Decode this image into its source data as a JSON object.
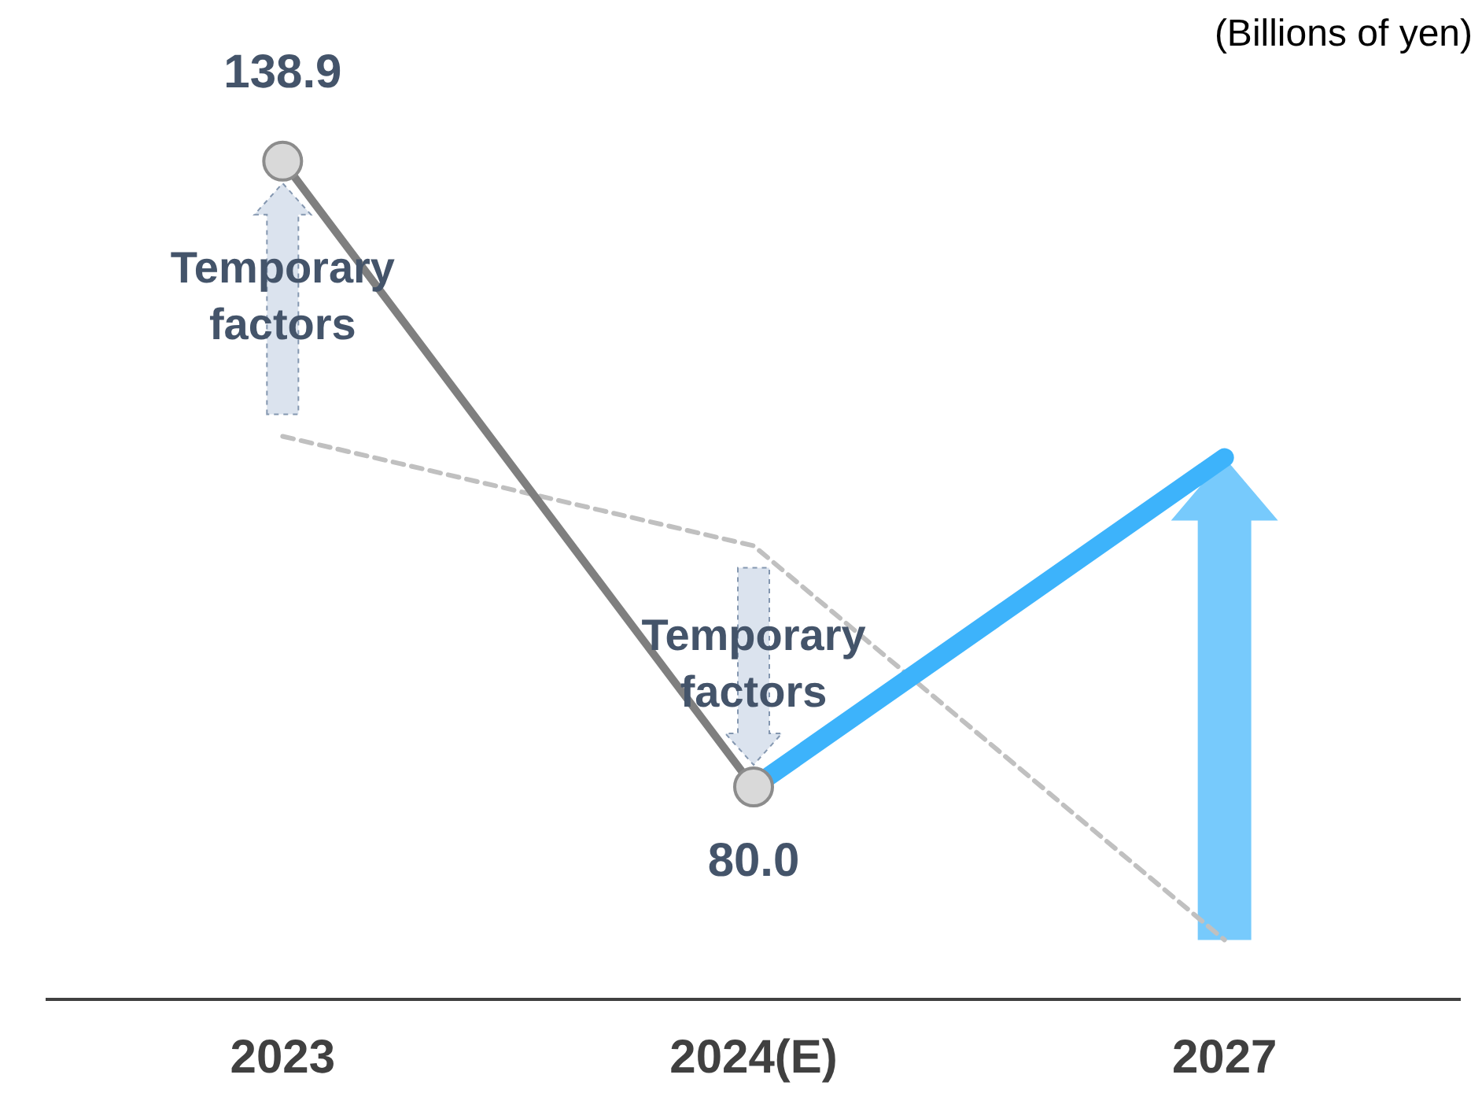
{
  "chart_data": {
    "type": "line",
    "title": "(Billions of yen)",
    "categories": [
      "2023",
      "2024(E)",
      "2027"
    ],
    "series": [
      {
        "color": "#7f7f7f",
        "values": [
          138.9,
          80.0,
          null
        ],
        "value_labels": [
          "138.9",
          "80.0",
          null
        ],
        "marker": "circle",
        "line_style": "solid"
      },
      {
        "color": "#3db3fb",
        "values": [
          null,
          80.0,
          111
        ],
        "marker": "none",
        "line_style": "solid"
      },
      {
        "color": "#c0c0c0",
        "values": [
          113,
          102.7,
          65.6
        ],
        "marker": "none",
        "line_style": "dashed"
      }
    ],
    "tick_labels": "x",
    "grid": false,
    "legend": false,
    "annotations": [
      "Temporary factors",
      "Temporary factors"
    ]
  }
}
